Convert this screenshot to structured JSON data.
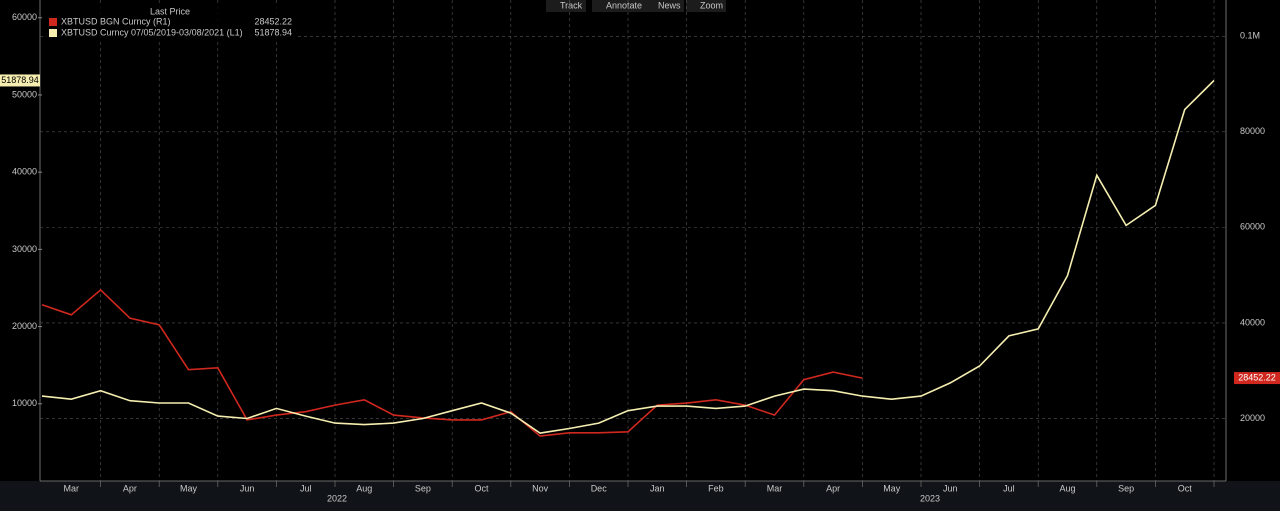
{
  "toolbar": [
    "Track",
    "Annotate",
    "News",
    "Zoom"
  ],
  "chart_data": {
    "type": "line",
    "legend_title": "Last Price",
    "years": [
      "2022",
      "2023"
    ],
    "categories": [
      null,
      "Mar",
      null,
      "Apr",
      null,
      "May",
      null,
      "Jun",
      null,
      "Jul",
      null,
      "Aug",
      null,
      "Sep",
      null,
      "Oct",
      null,
      "Nov",
      null,
      "Dec",
      null,
      "Jan",
      null,
      "Feb",
      null,
      "Mar",
      null,
      "Apr",
      null,
      "May",
      null,
      "Jun",
      null,
      "Jul",
      null,
      "Aug",
      null,
      "Sep",
      null,
      "Oct",
      null
    ],
    "ylim": [
      0,
      62300
    ],
    "yticks": [
      10000,
      20000,
      30000,
      40000,
      50000,
      60000
    ],
    "y2lim": [
      6900,
      107600
    ],
    "y2ticks": [
      20000,
      40000,
      60000,
      80000,
      {
        "value": 100000,
        "label": "0.1M"
      }
    ],
    "grid": true,
    "legend": "top-left",
    "series": [
      {
        "name": "XBTUSD BGN Curncy  (R1)",
        "color": "#d0281e",
        "axis": "y2",
        "values": [
          43800,
          41700,
          46900,
          41000,
          39600,
          30200,
          30600,
          19700,
          20700,
          21400,
          22800,
          23900,
          20700,
          20100,
          19700,
          19700,
          21400,
          16300,
          17000,
          17000,
          17200,
          22800,
          23200,
          23900,
          22800,
          20700,
          28100,
          29700,
          28452.22,
          null,
          null,
          null,
          null,
          null,
          null,
          null,
          null,
          null,
          null,
          null,
          null
        ]
      },
      {
        "name": "XBTUSD Curncy 07/05/2019-03/08/2021  (L1)",
        "color": "#f5eeb0",
        "axis": "y",
        "values": [
          11000,
          10600,
          11700,
          10400,
          10100,
          10100,
          8400,
          8100,
          9400,
          8400,
          7500,
          7300,
          7500,
          8100,
          9100,
          10100,
          8800,
          6200,
          6800,
          7500,
          9100,
          9700,
          9700,
          9400,
          9700,
          11000,
          11900,
          11700,
          11000,
          10600,
          11000,
          12700,
          14900,
          18800,
          19700,
          26600,
          39600,
          33100,
          35700,
          48100,
          51878.94
        ]
      }
    ]
  }
}
